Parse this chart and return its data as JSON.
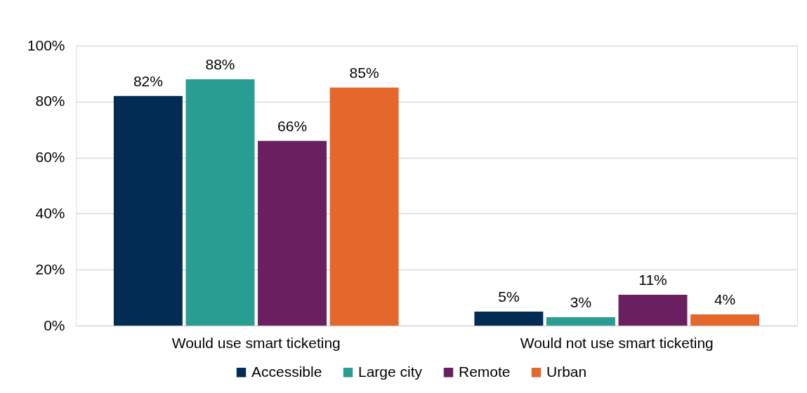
{
  "chart_data": {
    "type": "bar",
    "categories": [
      "Would use smart ticketing",
      "Would not use smart ticketing"
    ],
    "series": [
      {
        "name": "Accessible",
        "color": "#022c53",
        "values": [
          82,
          5
        ],
        "value_labels": [
          "82%",
          "5%"
        ]
      },
      {
        "name": "Large city",
        "color": "#2a9d92",
        "values": [
          88,
          3
        ],
        "value_labels": [
          "88%",
          "3%"
        ]
      },
      {
        "name": "Remote",
        "color": "#6a1f60",
        "values": [
          66,
          11
        ],
        "value_labels": [
          "66%",
          "11%"
        ]
      },
      {
        "name": "Urban",
        "color": "#e4672b",
        "values": [
          85,
          4
        ],
        "value_labels": [
          "85%",
          "4%"
        ]
      }
    ],
    "ylim": [
      0,
      100
    ],
    "yticks": [
      {
        "value": 0,
        "label": "0%"
      },
      {
        "value": 20,
        "label": "20%"
      },
      {
        "value": 40,
        "label": "40%"
      },
      {
        "value": 60,
        "label": "60%"
      },
      {
        "value": 80,
        "label": "80%"
      },
      {
        "value": 100,
        "label": "100%"
      }
    ],
    "grid": "y",
    "legend": "bottom"
  }
}
